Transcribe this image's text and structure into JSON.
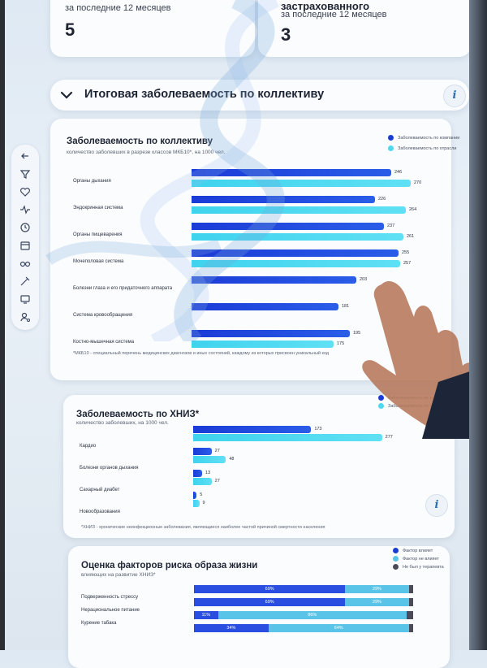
{
  "stats": [
    {
      "title": "",
      "label": "за последние 12 месяцев",
      "value": "5"
    },
    {
      "title": "застрахованного",
      "label": "за последние 12 месяцев",
      "value": "3"
    }
  ],
  "section": {
    "title": "Итоговая заболеваемость по коллективу",
    "info": "i"
  },
  "sidebar_icons": [
    "back-arrow-icon",
    "filter-icon",
    "heart-icon",
    "pulse-icon",
    "clock-icon",
    "calendar-icon",
    "glasses-icon",
    "syringe-icon",
    "monitor-icon",
    "person-settings-icon"
  ],
  "colors": {
    "company": "#2a4fe0",
    "industry": "#4fd8f0",
    "not_affect": "#59c4e8",
    "no_data": "#4a4a58"
  },
  "chart1": {
    "title": "Заболеваемость по коллективу",
    "subtitle": "количество заболевших в разрезе классов МКБ10*, на 1000 чел.",
    "legend": [
      "Заболеваемость по компании",
      "Заболеваемость по отрасли"
    ],
    "footnote": "*МКБ10 - специальный перечень медицинских диагнозов и иных состояний, каждому из которых присвоен уникальный код",
    "chart_data": {
      "type": "bar",
      "categories": [
        "Органы дыхания",
        "Эндокринная система",
        "Органы пищеварения",
        "Мочеполовая система",
        "Болезни глаза и его придаточного аппарата",
        "Система кровообращения",
        "Костно-мышечная система"
      ],
      "series": [
        {
          "name": "Заболеваемость по компании",
          "values": [
            246,
            226,
            237,
            255,
            203,
            181,
            195
          ]
        },
        {
          "name": "Заболеваемость по отрасли",
          "values": [
            270,
            264,
            261,
            257,
            null,
            null,
            175
          ]
        }
      ]
    }
  },
  "chart2": {
    "title": "Заболеваемость по ХНИЗ*",
    "subtitle": "количество заболевших, на 1000 чел.",
    "legend": [
      "Заболеваемость по компании",
      "Заболеваемость по отрасли"
    ],
    "footnote": "*ХНИЗ - хронические неинфекционные заболевания, являющиеся наиболее частой причиной смертности населения",
    "chart_data": {
      "type": "bar",
      "categories": [
        "Кардио",
        "Болезни органов дыхания",
        "Сахарный диабет",
        "Новообразования"
      ],
      "series": [
        {
          "name": "Заболеваемость по компании",
          "values": [
            173,
            27,
            13,
            5
          ]
        },
        {
          "name": "Заболеваемость по отрасли",
          "values": [
            277,
            48,
            27,
            9
          ]
        }
      ]
    }
  },
  "chart3": {
    "title": "Оценка факторов риска образа жизни",
    "subtitle": "влияющих на развитие ХНИЗ*",
    "legend": [
      "Фактор влияет",
      "Фактор не влияет",
      "Не был у терапевта"
    ],
    "chart_data": {
      "type": "bar",
      "categories": [
        "Подверженность стрессу",
        "Нерациональное питание",
        "Курение табака",
        ""
      ],
      "series": [
        {
          "name": "Фактор влияет",
          "values": [
            69,
            69,
            11,
            34
          ]
        },
        {
          "name": "Фактор не влияет",
          "values": [
            29,
            29,
            86,
            64
          ]
        },
        {
          "name": "Не был у терапевта",
          "values": [
            2,
            2,
            3,
            2
          ]
        }
      ],
      "labels": [
        [
          "69%",
          "29%",
          ""
        ],
        [
          "69%",
          "29%",
          ""
        ],
        [
          "11%",
          "86%",
          ""
        ],
        [
          "34%",
          "64%",
          ""
        ]
      ]
    }
  }
}
